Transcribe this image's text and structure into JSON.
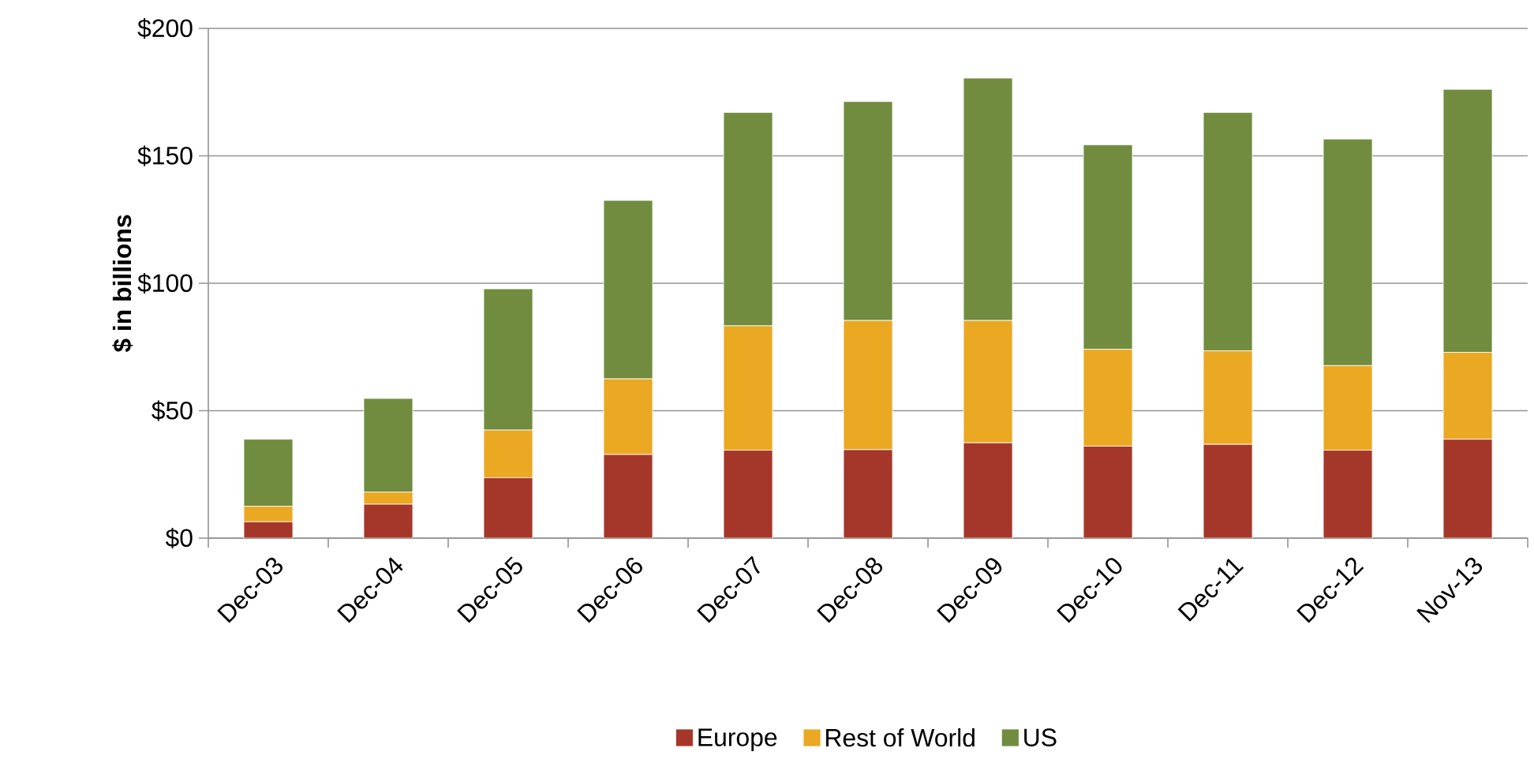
{
  "chart_data": {
    "type": "bar",
    "stacked": true,
    "ylabel": "$ in billions",
    "categories": [
      "Dec-03",
      "Dec-04",
      "Dec-05",
      "Dec-06",
      "Dec-07",
      "Dec-08",
      "Dec-09",
      "Dec-10",
      "Dec-11",
      "Dec-12",
      "Nov-13"
    ],
    "series": [
      {
        "name": "Europe",
        "color": "#a5372a",
        "values": [
          6.4,
          13.3,
          23.7,
          32.8,
          34.5,
          34.7,
          37.4,
          36.1,
          36.8,
          34.5,
          38.8
        ]
      },
      {
        "name": "Rest of World",
        "color": "#eaa823",
        "values": [
          6.1,
          4.8,
          18.7,
          29.7,
          48.8,
          50.7,
          48.0,
          38.0,
          36.7,
          33.2,
          34.1
        ]
      },
      {
        "name": "US",
        "color": "#718c3f",
        "values": [
          26.3,
          36.7,
          55.4,
          70.0,
          83.7,
          85.9,
          95.1,
          80.2,
          93.5,
          88.9,
          103.2
        ]
      }
    ],
    "ylim": [
      0,
      200
    ],
    "yticks": [
      {
        "value": 0,
        "label": "$0"
      },
      {
        "value": 50,
        "label": "$50"
      },
      {
        "value": 100,
        "label": "$100"
      },
      {
        "value": 150,
        "label": "$150"
      },
      {
        "value": 200,
        "label": "$200"
      }
    ],
    "grid": "y",
    "legend": "bottom"
  }
}
